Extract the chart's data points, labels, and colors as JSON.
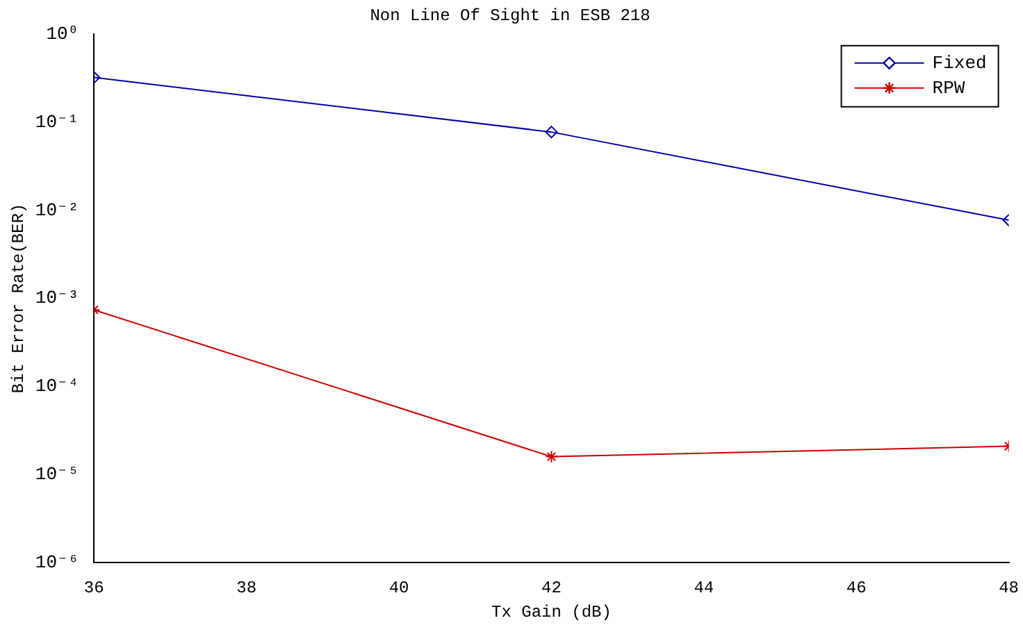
{
  "chart_data": {
    "type": "line",
    "title": "Non Line Of Sight in ESB 218",
    "xlabel": "Tx Gain (dB)",
    "ylabel": "Bit Error Rate(BER)",
    "x": [
      36,
      42,
      48
    ],
    "series": [
      {
        "name": "Fixed",
        "color": "#0000aa",
        "marker": "diamond",
        "values": [
          0.32,
          0.077,
          0.0077
        ]
      },
      {
        "name": "RPW",
        "color": "#cc0000",
        "marker": "cross",
        "values": [
          0.00074,
          1.6e-05,
          2.1e-05
        ]
      }
    ],
    "log": "y",
    "xlim": [
      36,
      48
    ],
    "xticks": [
      36,
      38,
      40,
      42,
      44,
      46,
      48
    ],
    "ylim": [
      1e-06,
      1
    ],
    "yticks": [
      {
        "value": 1e-06,
        "label": "10⁻⁶"
      },
      {
        "value": 1e-05,
        "label": "10⁻⁵"
      },
      {
        "value": 0.0001,
        "label": "10⁻⁴"
      },
      {
        "value": 0.001,
        "label": "10⁻³"
      },
      {
        "value": 0.01,
        "label": "10⁻²"
      },
      {
        "value": 0.1,
        "label": "10⁻¹"
      },
      {
        "value": 1,
        "label": "10⁰"
      }
    ],
    "grid": false,
    "legend": "top right",
    "line_style": "solid"
  }
}
